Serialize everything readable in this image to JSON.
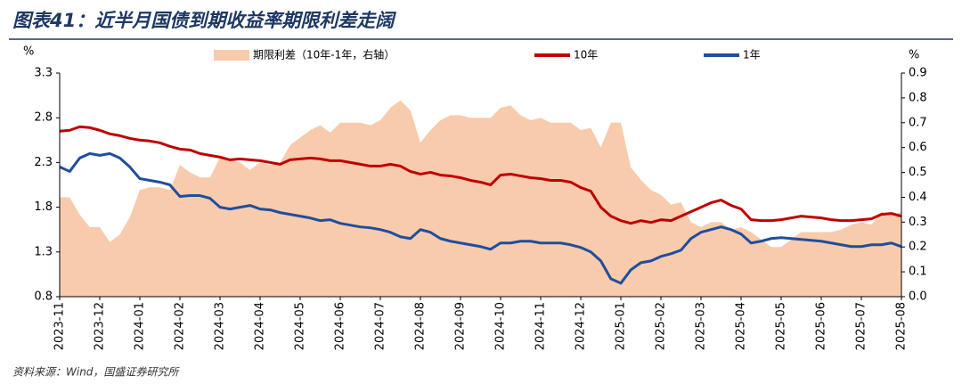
{
  "chart_data": {
    "type": "line",
    "title": "图表41：近半月国债到期收益率期限利差走阔",
    "source": "资料来源：Wind，国盛证券研究所",
    "y_label": "%",
    "y2_label": "%",
    "categories": [
      "2023-11",
      null,
      null,
      null,
      "2023-12",
      null,
      null,
      null,
      "2024-01",
      null,
      null,
      null,
      "2024-02",
      null,
      null,
      null,
      "2024-03",
      null,
      null,
      null,
      "2024-04",
      null,
      null,
      null,
      "2024-05",
      null,
      null,
      null,
      "2024-06",
      null,
      null,
      null,
      "2024-07",
      null,
      null,
      null,
      "2024-08",
      null,
      null,
      null,
      "2024-09",
      null,
      null,
      null,
      "2024-10",
      null,
      null,
      null,
      "2024-11",
      null,
      null,
      null,
      "2024-12",
      null,
      null,
      null,
      "2025-01",
      null,
      null,
      null,
      "2025-02",
      null,
      null,
      null,
      "2025-03",
      null,
      null,
      null,
      "2025-04",
      null,
      null,
      null,
      "2025-05",
      null,
      null,
      null,
      "2025-06",
      null,
      null,
      null,
      "2025-07",
      null,
      null,
      null,
      "2025-08"
    ],
    "ylim": [
      0.8,
      3.3
    ],
    "yticks": [
      0.8,
      1.3,
      1.8,
      2.3,
      2.8,
      3.3
    ],
    "y2lim": [
      0,
      0.9
    ],
    "y2ticks": [
      {
        "value": 0,
        "label": "0.0"
      },
      0.1,
      0.2,
      0.3,
      0.4,
      0.5,
      0.6,
      0.7,
      0.8,
      0.9
    ],
    "series": [
      {
        "name": "期限利差（10年-1年，右轴）",
        "type": "area",
        "axis": "y2",
        "color": "#f8cbad",
        "values": [
          0.4,
          0.4,
          0.33,
          0.28,
          0.28,
          0.22,
          0.25,
          0.32,
          0.43,
          0.44,
          0.44,
          0.43,
          0.53,
          0.5,
          0.48,
          0.48,
          0.56,
          0.55,
          0.54,
          0.51,
          0.54,
          0.53,
          0.54,
          0.61,
          0.64,
          0.67,
          0.69,
          0.66,
          0.7,
          0.7,
          0.7,
          0.69,
          0.71,
          0.76,
          0.79,
          0.75,
          0.62,
          0.67,
          0.71,
          0.73,
          0.73,
          0.72,
          0.72,
          0.72,
          0.76,
          0.77,
          0.73,
          0.71,
          0.72,
          0.7,
          0.7,
          0.7,
          0.67,
          0.68,
          0.6,
          0.7,
          0.7,
          0.52,
          0.47,
          0.43,
          0.41,
          0.37,
          0.38,
          0.3,
          0.28,
          0.3,
          0.3,
          0.27,
          0.28,
          0.26,
          0.23,
          0.2,
          0.2,
          0.23,
          0.26,
          0.26,
          0.26,
          0.26,
          0.27,
          0.29,
          0.3,
          0.29,
          0.34,
          0.33,
          0.34
        ]
      },
      {
        "name": "10年",
        "type": "line",
        "color": "#c00000",
        "values": [
          2.65,
          2.66,
          2.7,
          2.69,
          2.66,
          2.62,
          2.6,
          2.57,
          2.55,
          2.54,
          2.52,
          2.48,
          2.45,
          2.44,
          2.4,
          2.38,
          2.36,
          2.33,
          2.34,
          2.33,
          2.32,
          2.3,
          2.28,
          2.33,
          2.34,
          2.35,
          2.34,
          2.32,
          2.32,
          2.3,
          2.28,
          2.26,
          2.26,
          2.28,
          2.26,
          2.2,
          2.17,
          2.19,
          2.16,
          2.15,
          2.13,
          2.1,
          2.08,
          2.05,
          2.16,
          2.17,
          2.15,
          2.13,
          2.12,
          2.1,
          2.1,
          2.08,
          2.02,
          1.98,
          1.8,
          1.7,
          1.65,
          1.62,
          1.65,
          1.63,
          1.66,
          1.65,
          1.7,
          1.75,
          1.8,
          1.85,
          1.88,
          1.82,
          1.78,
          1.66,
          1.65,
          1.65,
          1.66,
          1.68,
          1.7,
          1.69,
          1.68,
          1.66,
          1.65,
          1.65,
          1.66,
          1.67,
          1.72,
          1.73,
          1.7
        ]
      },
      {
        "name": "1年",
        "type": "line",
        "color": "#1f4e9c",
        "values": [
          2.25,
          2.2,
          2.35,
          2.4,
          2.38,
          2.4,
          2.35,
          2.25,
          2.12,
          2.1,
          2.08,
          2.05,
          1.92,
          1.93,
          1.93,
          1.9,
          1.8,
          1.78,
          1.8,
          1.82,
          1.78,
          1.77,
          1.74,
          1.72,
          1.7,
          1.68,
          1.65,
          1.66,
          1.62,
          1.6,
          1.58,
          1.57,
          1.55,
          1.52,
          1.47,
          1.45,
          1.55,
          1.52,
          1.45,
          1.42,
          1.4,
          1.38,
          1.36,
          1.33,
          1.4,
          1.4,
          1.42,
          1.42,
          1.4,
          1.4,
          1.4,
          1.38,
          1.35,
          1.3,
          1.2,
          1.0,
          0.95,
          1.1,
          1.18,
          1.2,
          1.25,
          1.28,
          1.32,
          1.45,
          1.52,
          1.55,
          1.58,
          1.55,
          1.5,
          1.4,
          1.42,
          1.45,
          1.46,
          1.45,
          1.44,
          1.43,
          1.42,
          1.4,
          1.38,
          1.36,
          1.36,
          1.38,
          1.38,
          1.4,
          1.36
        ]
      }
    ]
  }
}
